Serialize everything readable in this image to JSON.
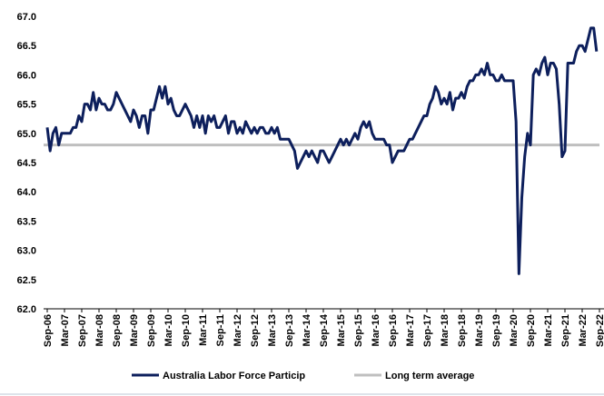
{
  "chart_data": {
    "type": "line",
    "categories": [
      "Sep-06",
      null,
      null,
      null,
      null,
      null,
      "Mar-07",
      null,
      null,
      null,
      null,
      null,
      "Sep-07",
      null,
      null,
      null,
      null,
      null,
      "Mar-08",
      null,
      null,
      null,
      null,
      null,
      "Sep-08",
      null,
      null,
      null,
      null,
      null,
      "Mar-09",
      null,
      null,
      null,
      null,
      null,
      "Sep-09",
      null,
      null,
      null,
      null,
      null,
      "Mar-10",
      null,
      null,
      null,
      null,
      null,
      "Sep-10",
      null,
      null,
      null,
      null,
      null,
      "Mar-11",
      null,
      null,
      null,
      null,
      null,
      "Sep-11",
      null,
      null,
      null,
      null,
      null,
      "Mar-12",
      null,
      null,
      null,
      null,
      null,
      "Sep-12",
      null,
      null,
      null,
      null,
      null,
      "Mar-13",
      null,
      null,
      null,
      null,
      null,
      "Sep-13",
      null,
      null,
      null,
      null,
      null,
      "Mar-14",
      null,
      null,
      null,
      null,
      null,
      "Sep-14",
      null,
      null,
      null,
      null,
      null,
      "Mar-15",
      null,
      null,
      null,
      null,
      null,
      "Sep-15",
      null,
      null,
      null,
      null,
      null,
      "Mar-16",
      null,
      null,
      null,
      null,
      null,
      "Sep-16",
      null,
      null,
      null,
      null,
      null,
      "Mar-17",
      null,
      null,
      null,
      null,
      null,
      "Sep-17",
      null,
      null,
      null,
      null,
      null,
      "Mar-18",
      null,
      null,
      null,
      null,
      null,
      "Sep-18",
      null,
      null,
      null,
      null,
      null,
      "Mar-19",
      null,
      null,
      null,
      null,
      null,
      "Sep-19",
      null,
      null,
      null,
      null,
      null,
      "Mar-20",
      null,
      null,
      null,
      null,
      null,
      "Sep-20",
      null,
      null,
      null,
      null,
      null,
      "Mar-21",
      null,
      null,
      null,
      null,
      null,
      "Sep-21",
      null,
      null,
      null,
      null,
      null,
      "Mar-22",
      null,
      null,
      null,
      null,
      null,
      "Sep-22"
    ],
    "series": [
      {
        "name": "Australia Labor Force Particip",
        "color": "#0d1f5c",
        "values": [
          65.1,
          64.7,
          65.0,
          65.1,
          64.8,
          65.0,
          65.0,
          65.0,
          65.0,
          65.1,
          65.1,
          65.3,
          65.2,
          65.5,
          65.5,
          65.4,
          65.7,
          65.4,
          65.6,
          65.5,
          65.5,
          65.4,
          65.4,
          65.5,
          65.7,
          65.6,
          65.5,
          65.4,
          65.3,
          65.2,
          65.4,
          65.3,
          65.1,
          65.3,
          65.3,
          65.0,
          65.4,
          65.4,
          65.6,
          65.8,
          65.6,
          65.8,
          65.5,
          65.6,
          65.4,
          65.3,
          65.3,
          65.4,
          65.5,
          65.4,
          65.3,
          65.1,
          65.3,
          65.1,
          65.3,
          65.0,
          65.3,
          65.2,
          65.3,
          65.1,
          65.1,
          65.2,
          65.3,
          65.0,
          65.2,
          65.2,
          65.0,
          65.1,
          65.0,
          65.2,
          65.1,
          65.0,
          65.1,
          65.0,
          65.1,
          65.1,
          65.0,
          65.0,
          65.1,
          65.0,
          65.1,
          64.9,
          64.9,
          64.9,
          64.9,
          64.8,
          64.7,
          64.4,
          64.5,
          64.6,
          64.7,
          64.6,
          64.7,
          64.6,
          64.5,
          64.7,
          64.7,
          64.6,
          64.5,
          64.6,
          64.7,
          64.8,
          64.9,
          64.8,
          64.9,
          64.8,
          64.9,
          65.0,
          64.9,
          65.1,
          65.2,
          65.1,
          65.2,
          65.0,
          64.9,
          64.9,
          64.9,
          64.9,
          64.8,
          64.8,
          64.5,
          64.6,
          64.7,
          64.7,
          64.7,
          64.8,
          64.9,
          64.9,
          65.0,
          65.1,
          65.2,
          65.3,
          65.3,
          65.5,
          65.6,
          65.8,
          65.7,
          65.5,
          65.6,
          65.5,
          65.7,
          65.4,
          65.6,
          65.6,
          65.7,
          65.6,
          65.8,
          65.9,
          65.9,
          66.0,
          66.0,
          66.1,
          66.0,
          66.2,
          66.0,
          66.0,
          65.9,
          65.9,
          66.0,
          65.9,
          65.9,
          65.9,
          65.9,
          65.2,
          62.6,
          63.9,
          64.6,
          65.0,
          64.8,
          66.0,
          66.1,
          66.0,
          66.2,
          66.3,
          66.0,
          66.2,
          66.2,
          66.1,
          65.5,
          64.6,
          64.7,
          66.2,
          66.2,
          66.2,
          66.4,
          66.5,
          66.5,
          66.4,
          66.6,
          66.8,
          66.8,
          66.4,
          null
        ]
      }
    ],
    "reference_line": {
      "name": "Long term average",
      "value": 64.8,
      "color": "#bfbfbf"
    },
    "ylim": [
      62.0,
      67.0
    ],
    "yticks": [
      {
        "value": 62.0,
        "label": "62.0"
      },
      {
        "value": 62.5,
        "label": "62.5"
      },
      {
        "value": 63.0,
        "label": "63.0"
      },
      {
        "value": 63.5,
        "label": "63.5"
      },
      {
        "value": 64.0,
        "label": "64.0"
      },
      {
        "value": 64.5,
        "label": "64.5"
      },
      {
        "value": 65.0,
        "label": "65.0"
      },
      {
        "value": 65.5,
        "label": "65.5"
      },
      {
        "value": 66.0,
        "label": "66.0"
      },
      {
        "value": 66.5,
        "label": "66.5"
      },
      {
        "value": 67.0,
        "label": "67.0"
      }
    ],
    "grid": false
  }
}
